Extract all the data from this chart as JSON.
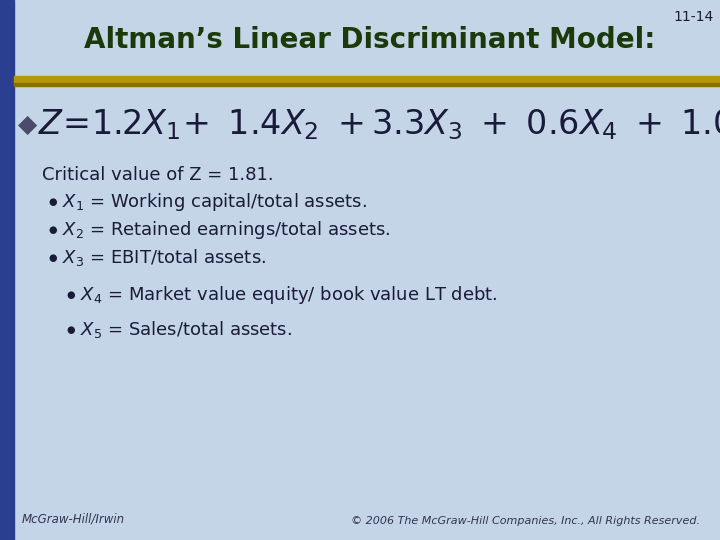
{
  "title": "Altman’s Linear Discriminant Model:",
  "slide_number": "11-14",
  "bg_color": "#c5d5e8",
  "title_bg_color": "#c5d5e8",
  "title_color": "#1a3a0a",
  "title_fontsize": 20,
  "left_bar_color": "#2a3f8f",
  "gold_line_color": "#b8960a",
  "gold_line2_color": "#8a7000",
  "text_color": "#1a1a3a",
  "footer_text_color": "#333355",
  "footer_left": "McGraw-Hill/Irwin",
  "footer_right": "© 2006 The McGraw-Hill Companies, Inc., All Rights Reserved.",
  "bullet_diamond_char": "◆",
  "bullet_circle_char": "●",
  "body_lines": [
    {
      "indent": 0,
      "bullet": false,
      "text": "Critical value of Z = 1.81."
    },
    {
      "indent": 1,
      "bullet": true,
      "text": "X_1 = Working capital/total assets."
    },
    {
      "indent": 1,
      "bullet": true,
      "text": "X_2 = Retained earnings/total assets."
    },
    {
      "indent": 1,
      "bullet": true,
      "text": "X_3 = EBIT/total assets."
    },
    {
      "indent": 2,
      "bullet": true,
      "text": "X_4 = Market value equity/ book value LT debt."
    },
    {
      "indent": 2,
      "bullet": true,
      "text": "X_5 = Sales/total assets."
    }
  ]
}
